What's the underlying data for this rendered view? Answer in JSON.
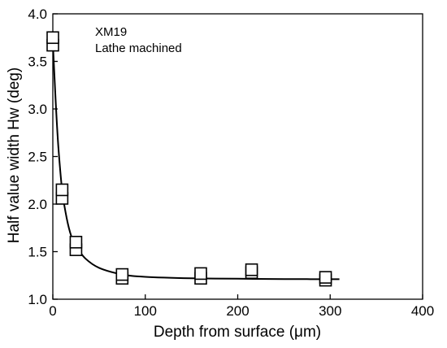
{
  "chart_data": {
    "type": "scatter",
    "title": "",
    "xlabel": "Depth from surface (μm)",
    "ylabel": "Half value width Hw (deg)",
    "xlim": [
      0,
      400
    ],
    "ylim": [
      1.0,
      4.0
    ],
    "x_ticks": [
      0,
      100,
      200,
      300,
      400
    ],
    "y_ticks": [
      1.0,
      1.5,
      2.0,
      2.5,
      3.0,
      3.5,
      4.0
    ],
    "x_tick_labels": [
      "0",
      "100",
      "200",
      "300",
      "400"
    ],
    "y_tick_labels": [
      "1.0",
      "1.5",
      "2.0",
      "2.5",
      "3.0",
      "3.5",
      "4.0"
    ],
    "annotations": [
      "XM19",
      "Lathe machined"
    ],
    "grid": false,
    "series": [
      {
        "marker": "open-square",
        "points": [
          {
            "x": 0,
            "y": 3.67
          },
          {
            "x": 0,
            "y": 3.75
          },
          {
            "x": 10,
            "y": 2.06
          },
          {
            "x": 10,
            "y": 2.15
          },
          {
            "x": 25,
            "y": 1.52
          },
          {
            "x": 25,
            "y": 1.6
          },
          {
            "x": 75,
            "y": 1.22
          },
          {
            "x": 75,
            "y": 1.26
          },
          {
            "x": 160,
            "y": 1.22
          },
          {
            "x": 160,
            "y": 1.27
          },
          {
            "x": 215,
            "y": 1.28
          },
          {
            "x": 215,
            "y": 1.31
          },
          {
            "x": 295,
            "y": 1.2
          },
          {
            "x": 295,
            "y": 1.23
          }
        ]
      },
      {
        "style": "fit-curve",
        "points": [
          {
            "x": 0,
            "y": 3.7
          },
          {
            "x": 3,
            "y": 3.1
          },
          {
            "x": 6,
            "y": 2.6
          },
          {
            "x": 10,
            "y": 2.15
          },
          {
            "x": 15,
            "y": 1.85
          },
          {
            "x": 20,
            "y": 1.66
          },
          {
            "x": 25,
            "y": 1.56
          },
          {
            "x": 35,
            "y": 1.43
          },
          {
            "x": 50,
            "y": 1.33
          },
          {
            "x": 75,
            "y": 1.26
          },
          {
            "x": 100,
            "y": 1.235
          },
          {
            "x": 150,
            "y": 1.22
          },
          {
            "x": 200,
            "y": 1.215
          },
          {
            "x": 250,
            "y": 1.212
          },
          {
            "x": 310,
            "y": 1.21
          }
        ]
      }
    ]
  }
}
